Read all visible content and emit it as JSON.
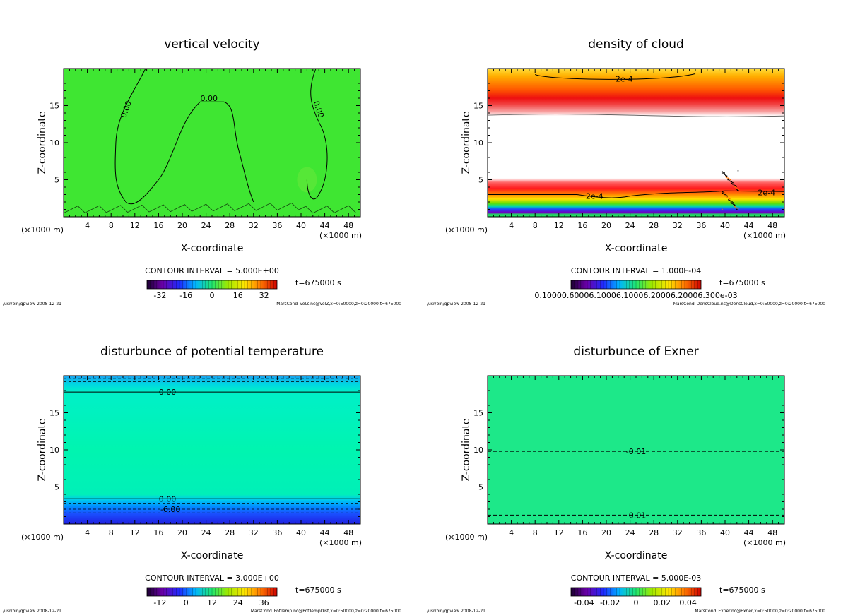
{
  "chart_data": [
    {
      "type": "heatmap",
      "title": "vertical velocity",
      "xlabel": "X-coordinate",
      "ylabel": "Z-coordinate",
      "x_unit_left": "(×1000 m)",
      "x_unit_right": "(×1000 m)",
      "xlim": [
        0,
        50
      ],
      "ylim": [
        0,
        20
      ],
      "x_ticks": [
        4,
        8,
        12,
        16,
        20,
        24,
        28,
        32,
        36,
        40,
        44,
        48
      ],
      "y_ticks": [
        5,
        10,
        15
      ],
      "contour_interval": "CONTOUR INTERVAL = 5.000E+00",
      "time": "t=675000 s",
      "colorbar_ticks": [
        "-32",
        "-16",
        "0",
        "16",
        "32"
      ],
      "colorbar_values": [
        -32,
        -16,
        0,
        16,
        32
      ],
      "colorbar_range": [
        -40,
        40
      ],
      "contour_labels": [
        {
          "text": "0.00",
          "x": 10.5,
          "y": 14.5,
          "rot": -70
        },
        {
          "text": "0.00",
          "x": 24.5,
          "y": 16.0,
          "rot": 0
        },
        {
          "text": "0.00",
          "x": 43.0,
          "y": 14.5,
          "rot": 70
        }
      ],
      "footer_left": "/usr/bin/gpview  2008-12-21",
      "footer_right": "MarsCond_VelZ.nc@VelZ,x=0:50000,z=0:20000,t=675000"
    },
    {
      "type": "heatmap",
      "title": "density of cloud",
      "xlabel": "X-coordinate",
      "ylabel": "Z-coordinate",
      "x_unit_left": "(×1000 m)",
      "x_unit_right": "(×1000 m)",
      "xlim": [
        0,
        50
      ],
      "ylim": [
        0,
        20
      ],
      "x_ticks": [
        4,
        8,
        12,
        16,
        20,
        24,
        28,
        32,
        36,
        40,
        44,
        48
      ],
      "y_ticks": [
        5,
        10,
        15
      ],
      "contour_interval": "CONTOUR INTERVAL = 1.000E-04",
      "time": "t=675000 s",
      "colorbar_label_text": "0.10000.60006.10006.10006.20006.20006.300e-03",
      "contour_labels": [
        {
          "text": "2e-4",
          "x": 23.0,
          "y": 18.6,
          "rot": 0
        },
        {
          "text": "2e-4",
          "x": 18.0,
          "y": 2.8,
          "rot": 0
        },
        {
          "text": "2e-4",
          "x": 47.0,
          "y": 3.3,
          "rot": 0
        }
      ],
      "footer_left": "/usr/bin/gpview  2008-12-21",
      "footer_right": "MarsCond_DensCloud.nc@DensCloud,x=0:50000,z=0:20000,t=675000"
    },
    {
      "type": "heatmap",
      "title": "disturbunce of potential temperature",
      "xlabel": "X-coordinate",
      "ylabel": "Z-coordinate",
      "x_unit_left": "(×1000 m)",
      "x_unit_right": "(×1000 m)",
      "xlim": [
        0,
        50
      ],
      "ylim": [
        0,
        20
      ],
      "x_ticks": [
        4,
        8,
        12,
        16,
        20,
        24,
        28,
        32,
        36,
        40,
        44,
        48
      ],
      "y_ticks": [
        5,
        10,
        15
      ],
      "contour_interval": "CONTOUR INTERVAL = 3.000E+00",
      "time": "t=675000 s",
      "colorbar_ticks": [
        "-12",
        "0",
        "12",
        "24",
        "36"
      ],
      "colorbar_values": [
        -12,
        0,
        12,
        24,
        36
      ],
      "colorbar_range": [
        -18,
        42
      ],
      "contour_labels": [
        {
          "text": "0.00",
          "x": 17.5,
          "y": 17.8,
          "rot": 0
        },
        {
          "text": "0.00",
          "x": 17.5,
          "y": 3.4,
          "rot": 0
        },
        {
          "text": "-6.00",
          "x": 18.0,
          "y": 2.0,
          "rot": 0
        }
      ],
      "footer_left": "/usr/bin/gpview  2008-12-21",
      "footer_right": "MarsCond_PotTemp.nc@PotTempDist,x=0:50000,z=0:20000,t=675000"
    },
    {
      "type": "heatmap",
      "title": "disturbunce of Exner",
      "xlabel": "X-coordinate",
      "ylabel": "Z-coordinate",
      "x_unit_left": "(×1000 m)",
      "x_unit_right": "(×1000 m)",
      "xlim": [
        0,
        50
      ],
      "ylim": [
        0,
        20
      ],
      "x_ticks": [
        4,
        8,
        12,
        16,
        20,
        24,
        28,
        32,
        36,
        40,
        44,
        48
      ],
      "y_ticks": [
        5,
        10,
        15
      ],
      "contour_interval": "CONTOUR INTERVAL = 5.000E-03",
      "time": "t=675000 s",
      "colorbar_ticks": [
        "-0.04",
        "-0.02",
        "0",
        "0.02",
        "0.04"
      ],
      "colorbar_values": [
        -0.04,
        -0.02,
        0,
        0.02,
        0.04
      ],
      "colorbar_range": [
        -0.05,
        0.05
      ],
      "contour_labels": [
        {
          "text": "-0.01",
          "x": 25.0,
          "y": 9.8,
          "rot": 0
        },
        {
          "text": "-0.01",
          "x": 25.0,
          "y": 1.2,
          "rot": 0
        }
      ],
      "footer_left": "/usr/bin/gpview  2008-12-21",
      "footer_right": "MarsCond_Exner.nc@Exner,x=0:50000,z=0:20000,t=675000"
    }
  ]
}
